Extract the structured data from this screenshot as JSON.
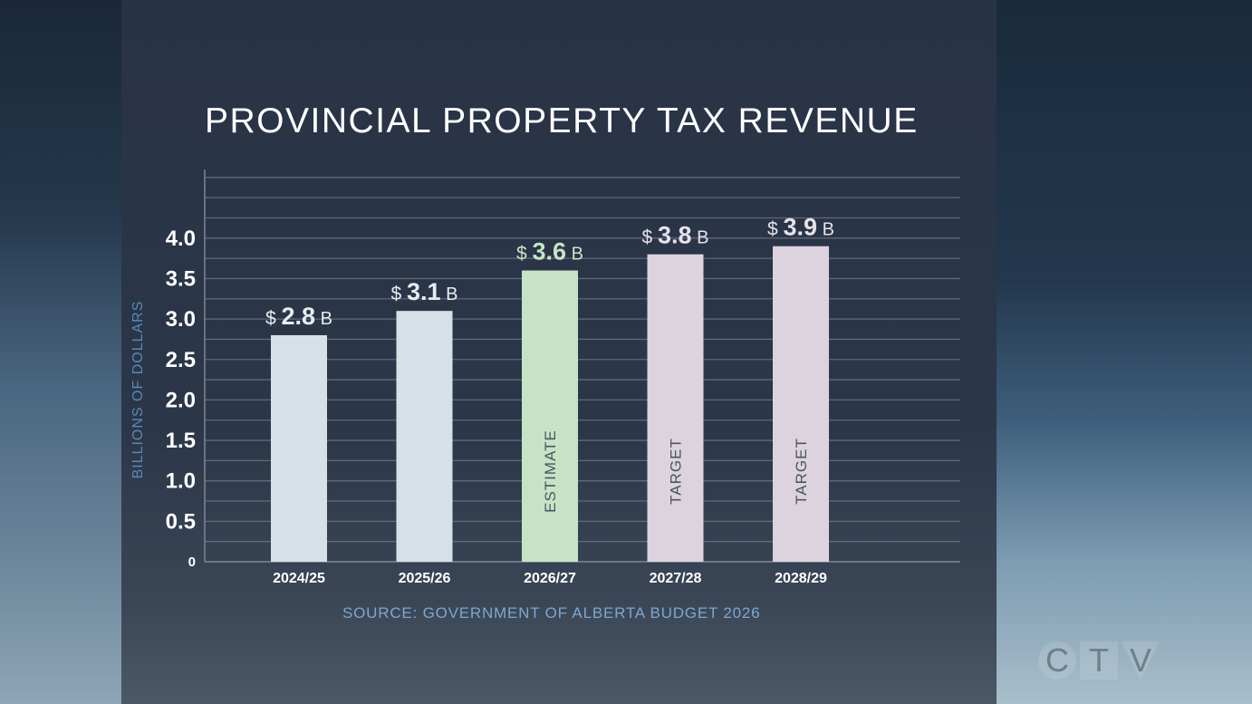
{
  "chart_data": {
    "type": "bar",
    "title": "PROVINCIAL PROPERTY TAX REVENUE",
    "ylabel": "BILLIONS OF DOLLARS",
    "xlabel": "",
    "categories": [
      "2024/25",
      "2025/26",
      "2026/27",
      "2027/28",
      "2028/29"
    ],
    "values": [
      2.8,
      3.1,
      3.6,
      3.8,
      3.9
    ],
    "value_labels": [
      {
        "prefix": "$",
        "value": "2.8",
        "suffix": "B"
      },
      {
        "prefix": "$",
        "value": "3.1",
        "suffix": "B"
      },
      {
        "prefix": "$",
        "value": "3.6",
        "suffix": "B"
      },
      {
        "prefix": "$",
        "value": "3.8",
        "suffix": "B"
      },
      {
        "prefix": "$",
        "value": "3.9",
        "suffix": "B"
      }
    ],
    "bar_annotations": [
      "",
      "",
      "ESTIMATE",
      "TARGET",
      "TARGET"
    ],
    "bar_colors": [
      "#d6e1e7",
      "#d6e1e7",
      "#c6e4c5",
      "#ddd3df",
      "#ddd3df"
    ],
    "label_colors": [
      "#e6ecf0",
      "#e6ecf0",
      "#c6e4c5",
      "#e6e2ea",
      "#e6e2ea"
    ],
    "yticks": [
      "0",
      "0.5",
      "1.0",
      "1.5",
      "2.0",
      "2.5",
      "3.0",
      "3.5",
      "4.0"
    ],
    "ytick_values": [
      0,
      0.5,
      1,
      1.5,
      2,
      2.5,
      3,
      3.5,
      4
    ],
    "ylim": [
      0,
      4.75
    ],
    "grid": true,
    "gridline_step": 0.25,
    "source": "SOURCE: GOVERNMENT OF ALBERTA BUDGET 2026"
  },
  "branding": {
    "logo_letters": [
      "C",
      "T",
      "V"
    ]
  }
}
